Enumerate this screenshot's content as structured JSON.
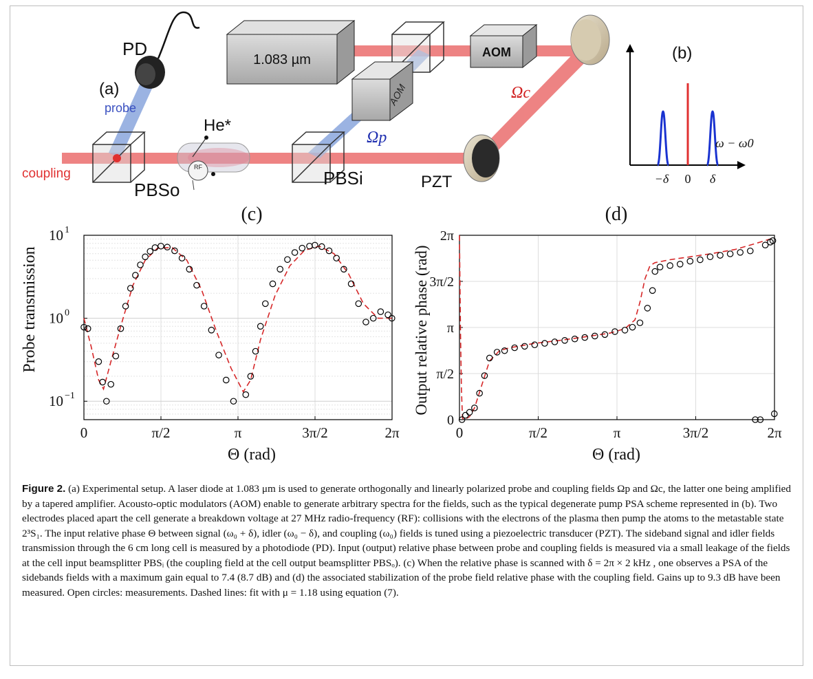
{
  "setup": {
    "panel_label": "(a)",
    "laser": "1.083 µm",
    "aom_right": "AOM",
    "aom_left": "AOM",
    "pd": "PD",
    "probe": "probe",
    "coupling": "coupling",
    "he": "He*",
    "rf": "RF",
    "pbs_out": "PBSo",
    "pbs_in": "PBSi",
    "pzt": "PZT",
    "omega_p": "Ωp",
    "omega_c": "Ωc",
    "colors": {
      "coupling": "#e03030",
      "probe": "#5a7bc8"
    }
  },
  "spectrum": {
    "panel_label": "(b)",
    "axis_label": "ω − ω0",
    "ticks": [
      "−δ",
      "0",
      "δ"
    ]
  },
  "chart_data": [
    {
      "panel_label": "(c)",
      "type": "scatter",
      "yscale": "log",
      "xlabel": "Θ (rad)",
      "ylabel": "Probe transmission",
      "xlim": [
        0,
        6.2832
      ],
      "ylim": [
        0.06,
        10
      ],
      "xtick_labels": [
        "0",
        "π/2",
        "π",
        "3π/2",
        "2π"
      ],
      "ytick_labels": [
        "10−1",
        "100",
        "101"
      ],
      "grid": true,
      "series": [
        {
          "style": "open circles",
          "color": "#000000",
          "x": [
            0.0,
            0.08,
            0.3,
            0.38,
            0.46,
            0.55,
            0.65,
            0.75,
            0.85,
            0.95,
            1.05,
            1.15,
            1.25,
            1.35,
            1.45,
            1.57,
            1.7,
            1.85,
            2.0,
            2.15,
            2.3,
            2.45,
            2.6,
            2.75,
            2.9,
            3.05,
            3.3,
            3.4,
            3.5,
            3.6,
            3.7,
            3.85,
            4.0,
            4.15,
            4.3,
            4.45,
            4.6,
            4.71,
            4.85,
            5.0,
            5.15,
            5.3,
            5.45,
            5.6,
            5.75,
            5.9,
            6.05,
            6.2,
            6.28
          ],
          "y": [
            0.78,
            0.75,
            0.3,
            0.17,
            0.1,
            0.16,
            0.35,
            0.75,
            1.4,
            2.3,
            3.3,
            4.4,
            5.5,
            6.4,
            7.1,
            7.4,
            7.2,
            6.5,
            5.3,
            3.9,
            2.5,
            1.4,
            0.72,
            0.36,
            0.18,
            0.1,
            0.12,
            0.2,
            0.4,
            0.8,
            1.5,
            2.6,
            3.9,
            5.1,
            6.2,
            7.0,
            7.4,
            7.6,
            7.3,
            6.5,
            5.3,
            3.9,
            2.6,
            1.5,
            0.9,
            1.0,
            1.2,
            1.1,
            1.0
          ]
        },
        {
          "style": "dashed line",
          "color": "#d62728",
          "x": [
            0.0,
            0.15,
            0.3,
            0.4,
            0.55,
            0.75,
            1.0,
            1.25,
            1.5,
            1.8,
            2.1,
            2.4,
            2.7,
            3.0,
            3.25,
            3.4,
            3.6,
            3.9,
            4.2,
            4.5,
            4.8,
            5.1,
            5.4,
            5.7,
            6.0,
            6.28
          ],
          "y": [
            1.0,
            0.45,
            0.18,
            0.14,
            0.3,
            0.8,
            2.5,
            5.0,
            7.0,
            7.1,
            5.0,
            2.2,
            0.7,
            0.25,
            0.13,
            0.18,
            0.55,
            1.9,
            4.3,
            6.6,
            7.4,
            6.0,
            3.4,
            1.5,
            1.0,
            1.0
          ]
        }
      ]
    },
    {
      "panel_label": "(d)",
      "type": "scatter",
      "xlabel": "Θ (rad)",
      "ylabel": "Output relative phase (rad)",
      "xlim": [
        0,
        6.2832
      ],
      "ylim": [
        0,
        6.2832
      ],
      "xtick_labels": [
        "0",
        "π/2",
        "π",
        "3π/2",
        "2π"
      ],
      "ytick_labels": [
        "0",
        "π/2",
        "π",
        "3π/2",
        "2π"
      ],
      "grid": true,
      "series": [
        {
          "style": "open circles",
          "color": "#000000",
          "x": [
            0.05,
            0.12,
            0.2,
            0.3,
            0.4,
            0.5,
            0.6,
            0.75,
            0.9,
            1.1,
            1.3,
            1.5,
            1.7,
            1.9,
            2.1,
            2.3,
            2.5,
            2.7,
            2.9,
            3.1,
            3.3,
            3.45,
            3.6,
            3.75,
            3.85,
            3.9,
            4.0,
            4.2,
            4.4,
            4.6,
            4.8,
            5.0,
            5.2,
            5.4,
            5.6,
            5.8,
            5.9,
            6.0,
            6.1,
            6.2,
            6.25,
            6.28
          ],
          "y": [
            0.0,
            0.15,
            0.25,
            0.4,
            0.9,
            1.5,
            2.1,
            2.3,
            2.35,
            2.45,
            2.5,
            2.55,
            2.6,
            2.65,
            2.7,
            2.75,
            2.8,
            2.85,
            2.9,
            3.0,
            3.05,
            3.15,
            3.3,
            3.8,
            4.4,
            5.05,
            5.2,
            5.25,
            5.3,
            5.4,
            5.45,
            5.55,
            5.6,
            5.65,
            5.7,
            5.75,
            0.0,
            0.0,
            5.95,
            6.05,
            6.1,
            0.2
          ]
        },
        {
          "style": "dashed line",
          "color": "#d62728",
          "x": [
            0.0,
            0.02,
            0.04,
            0.06,
            0.1,
            0.2,
            0.3,
            0.45,
            0.6,
            0.8,
            1.0,
            1.5,
            2.0,
            2.5,
            3.0,
            3.3,
            3.5,
            3.6,
            3.7,
            3.8,
            3.9,
            4.2,
            4.6,
            5.0,
            5.5,
            6.0,
            6.28
          ],
          "y": [
            6.28,
            3.0,
            1.0,
            0.05,
            0.0,
            0.1,
            0.4,
            1.2,
            2.0,
            2.35,
            2.45,
            2.6,
            2.7,
            2.82,
            2.95,
            3.1,
            3.4,
            4.0,
            4.8,
            5.25,
            5.35,
            5.45,
            5.55,
            5.65,
            5.8,
            6.05,
            6.2
          ]
        }
      ]
    }
  ],
  "caption": {
    "label": "Figure 2.",
    "text": " (a) Experimental setup. A laser diode at 1.083 μm is used to generate orthogonally and linearly polarized probe and coupling fields Ωp and Ωc, the latter one being amplified by a tapered amplifier. Acousto-optic modulators (AOM) enable to generate arbitrary spectra for the fields, such as the typical degenerate pump PSA scheme represented in (b). Two electrodes placed apart the cell generate a breakdown voltage at 27 MHz radio-frequency (RF): collisions with the electrons of the plasma then pump the atoms to the metastable state 2³S₁. The input relative phase Θ between signal (ω₀ + δ), idler (ω₀ − δ), and coupling (ω₀) fields is tuned using a piezoelectric transducer (PZT). The sideband signal and idler fields transmission through the 6 cm long cell is measured by a photodiode (PD). Input (output) relative phase between probe and coupling fields is measured via a small leakage of the fields at the cell input beamsplitter PBSᵢ (the coupling field at the cell output beamsplitter PBSₒ). (c) When the relative phase is scanned with δ = 2π × 2 kHz , one observes a PSA of the sidebands fields with a maximum gain equal to 7.4 (8.7 dB) and (d) the associated stabilization of the probe field relative phase with the coupling field. Gains up to 9.3 dB have been measured. Open circles: measurements. Dashed lines: fit with μ = 1.18 using equation (7)."
  }
}
